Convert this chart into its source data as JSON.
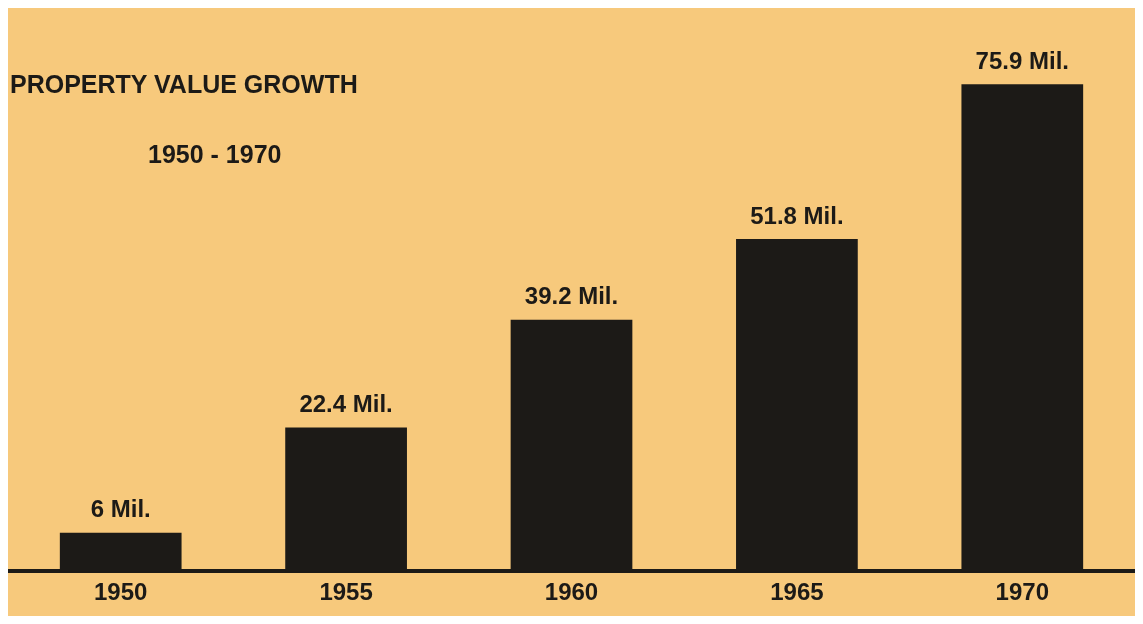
{
  "chart_data": {
    "type": "bar",
    "title": "PROPERTY VALUE GROWTH",
    "subtitle": "1950 - 1970",
    "categories": [
      "1950",
      "1955",
      "1960",
      "1965",
      "1970"
    ],
    "values": [
      6,
      22.4,
      39.2,
      51.8,
      75.9
    ],
    "value_labels": [
      "6 Mil.",
      "22.4 Mil.",
      "39.2 Mil.",
      "51.8 Mil.",
      "75.9 Mil."
    ],
    "color": "#1c1a17",
    "tick_labels": "x",
    "grid": false,
    "legend": false
  }
}
